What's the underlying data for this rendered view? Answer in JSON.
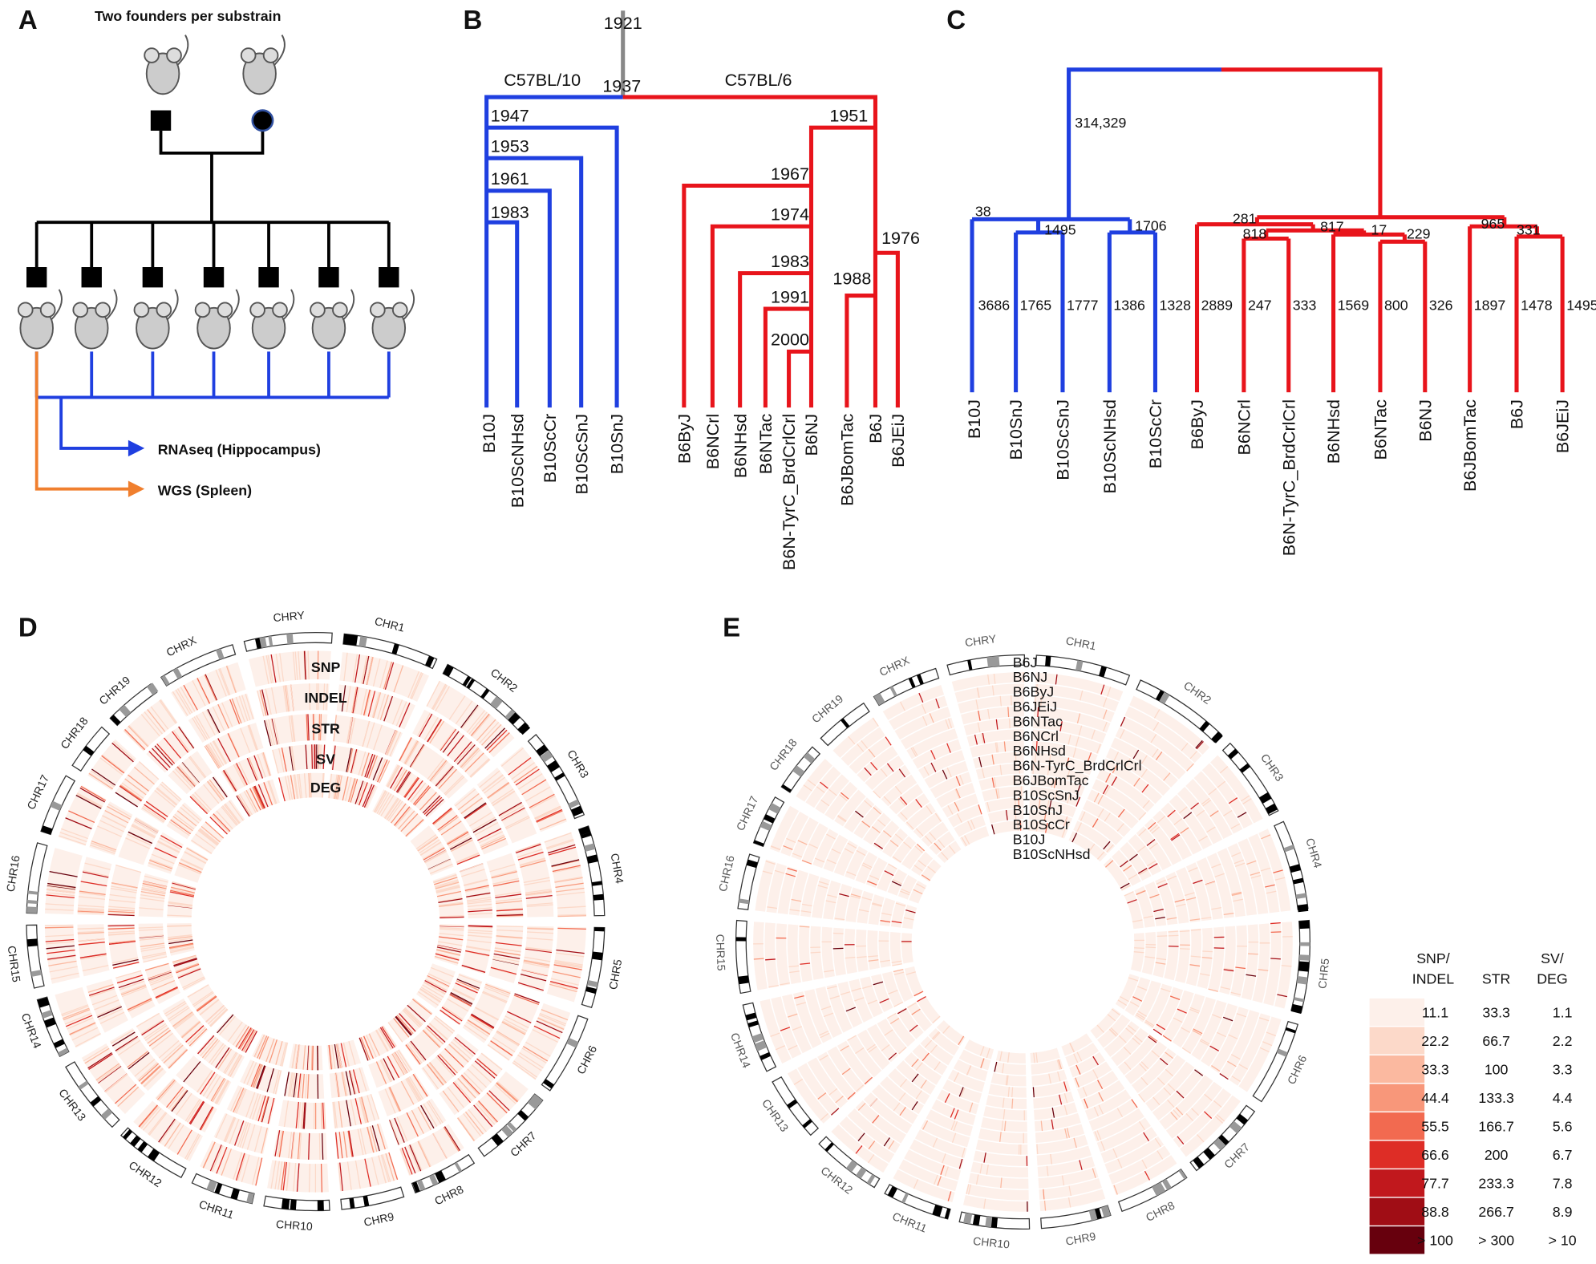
{
  "panel_labels": [
    "A",
    "B",
    "C",
    "D",
    "E"
  ],
  "panel_a": {
    "title": "Two founders per substrain",
    "rnaseq": "RNAseq (Hippocampus)",
    "wgs": "WGS (Spleen)"
  },
  "panel_b": {
    "root": "1921",
    "clades": [
      "C57BL/10",
      "C57BL/6"
    ],
    "split": "1937",
    "years": [
      "1947",
      "1953",
      "1961",
      "1983",
      "1951",
      "1967",
      "1974",
      "1983",
      "1991",
      "2000",
      "1976",
      "1988"
    ],
    "leaves": [
      "B10J",
      "B10ScNHsd",
      "B10ScCr",
      "B10ScSnJ",
      "B10SnJ",
      "B6ByJ",
      "B6NCrl",
      "B6NHsd",
      "B6NTac",
      "B6N-TyrC_BrdCrlCrl",
      "B6NJ",
      "B6JBomTac",
      "B6J",
      "B6JEiJ"
    ]
  },
  "panel_c": {
    "root_edge": "314,329",
    "internal_edges": [
      "38",
      "1495",
      "1706",
      "281",
      "818",
      "817",
      "17",
      "229",
      "965",
      "331"
    ],
    "leaf_edges": [
      "3686",
      "1765",
      "1777",
      "1386",
      "1328",
      "2889",
      "247",
      "333",
      "1569",
      "800",
      "326",
      "1897",
      "1478",
      "1495"
    ],
    "leaves": [
      "B10J",
      "B10SnJ",
      "B10ScSnJ",
      "B10ScNHsd",
      "B10ScCr",
      "B6ByJ",
      "B6NCrl",
      "B6N-TyrC_BrdCrlCrl",
      "B6NHsd",
      "B6NTac",
      "B6NJ",
      "B6JBomTac",
      "B6J",
      "B6JEiJ"
    ]
  },
  "panel_d": {
    "chromosomes": [
      "CHR1",
      "CHR2",
      "CHR3",
      "CHR4",
      "CHR5",
      "CHR6",
      "CHR7",
      "CHR8",
      "CHR9",
      "CHR10",
      "CHR11",
      "CHR12",
      "CHR13",
      "CHR14",
      "CHR15",
      "CHR16",
      "CHR17",
      "CHR18",
      "CHR19",
      "CHRX",
      "CHRY"
    ],
    "tracks": [
      "SNP",
      "INDEL",
      "STR",
      "SV",
      "DEG"
    ]
  },
  "panel_e": {
    "chromosomes": [
      "CHR1",
      "CHR2",
      "CHR3",
      "CHR4",
      "CHR5",
      "CHR6",
      "CHR7",
      "CHR8",
      "CHR9",
      "CHR10",
      "CHR11",
      "CHR12",
      "CHR13",
      "CHR14",
      "CHR15",
      "CHR16",
      "CHR17",
      "CHR18",
      "CHR19",
      "CHRX",
      "CHRY"
    ],
    "strains": [
      "B6J",
      "B6NJ",
      "B6ByJ",
      "B6JEiJ",
      "B6NTac",
      "B6NCrl",
      "B6NHsd",
      "B6N-TyrC_BrdCrlCrl",
      "B6JBomTac",
      "B10ScSnJ",
      "B10SnJ",
      "B10ScCr",
      "B10J",
      "B10ScNHsd"
    ]
  },
  "legend": {
    "headers": [
      [
        "SNP/",
        "INDEL"
      ],
      [
        "STR"
      ],
      [
        "SV/",
        "DEG"
      ]
    ],
    "colors": [
      "#fdf0ea",
      "#fcd9c9",
      "#fbb9a0",
      "#f8977a",
      "#f26a50",
      "#de2d26",
      "#c1181d",
      "#a00d15",
      "#67000d"
    ],
    "rows": [
      [
        "11.1",
        "33.3",
        "1.1"
      ],
      [
        "22.2",
        "66.7",
        "2.2"
      ],
      [
        "33.3",
        "100",
        "3.3"
      ],
      [
        "44.4",
        "133.3",
        "4.4"
      ],
      [
        "55.5",
        "166.7",
        "5.6"
      ],
      [
        "66.6",
        "200",
        "6.7"
      ],
      [
        "77.7",
        "233.3",
        "7.8"
      ],
      [
        "88.8",
        "266.7",
        "8.9"
      ],
      [
        "> 100",
        "> 300",
        "> 10"
      ]
    ]
  }
}
